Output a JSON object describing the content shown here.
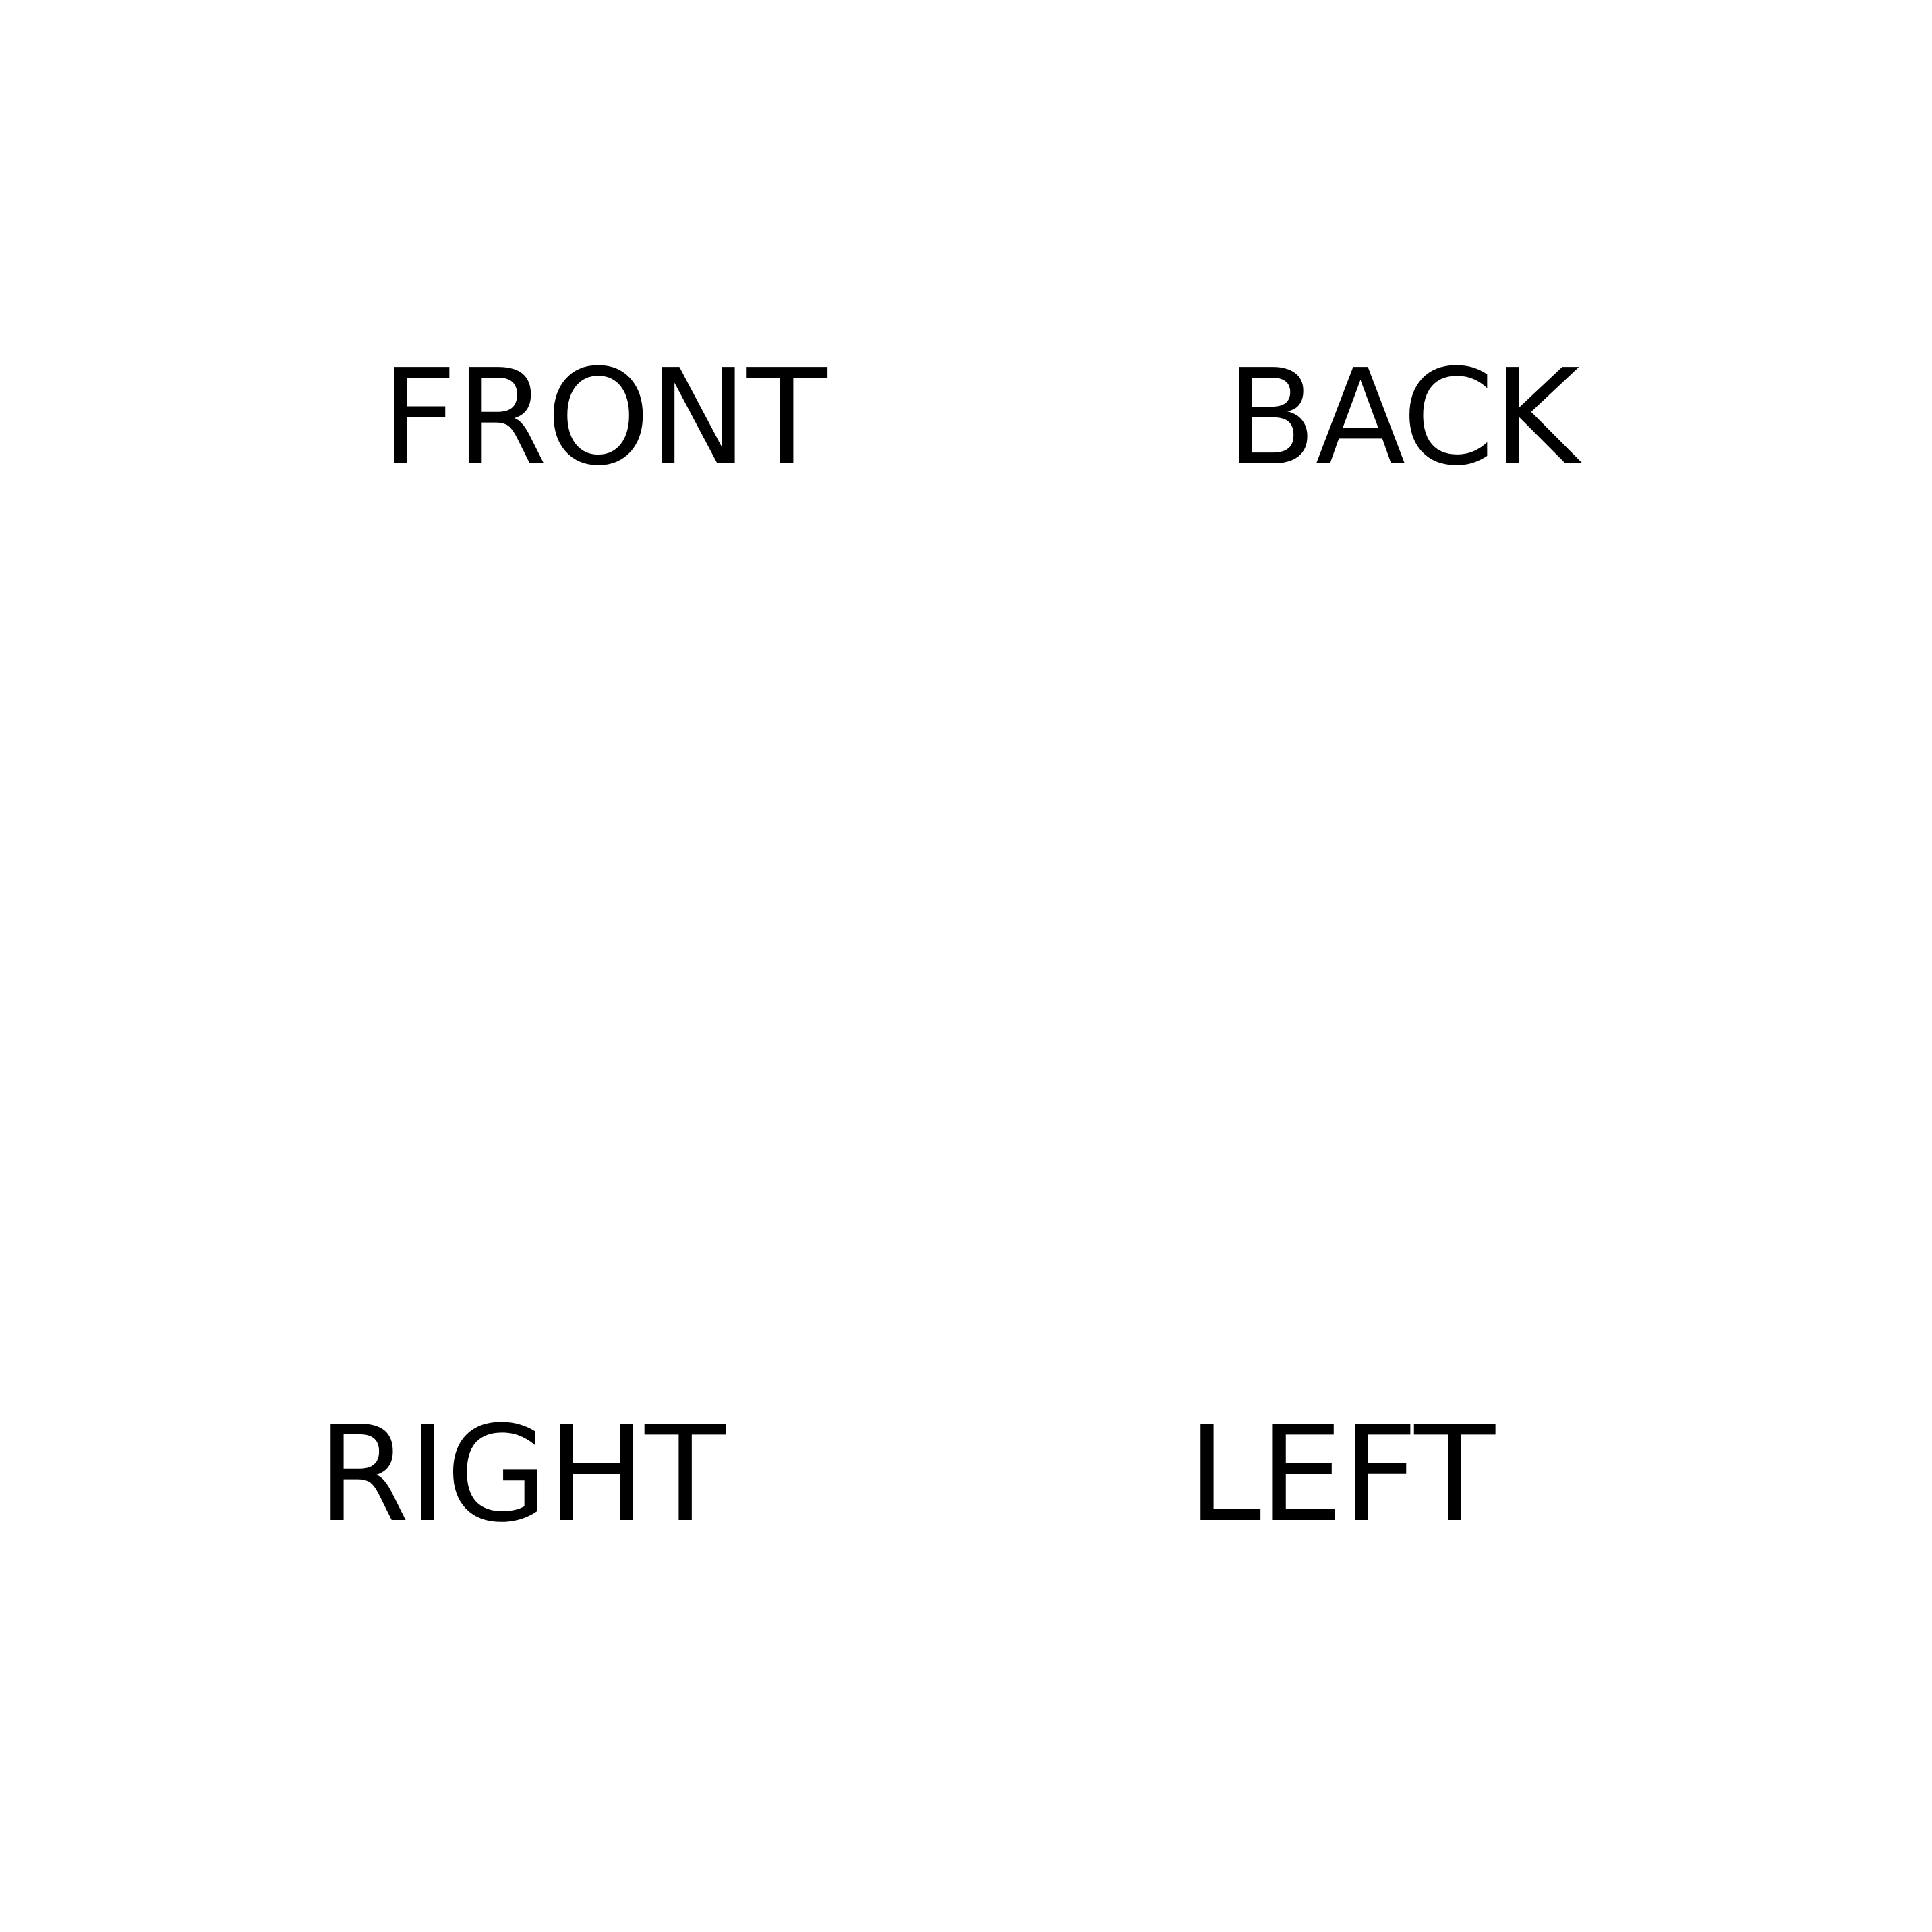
{
  "labels": {
    "front": "FRONT",
    "back": "BACK",
    "right": "RIGHT",
    "left": "LEFT"
  },
  "colors": {
    "background": "#ffffff",
    "text": "#000000"
  }
}
